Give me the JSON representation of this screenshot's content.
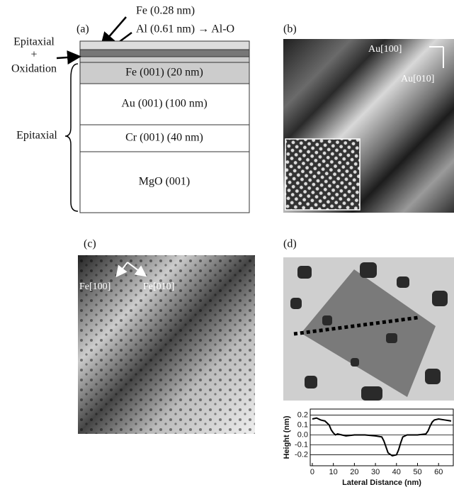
{
  "panel_a": {
    "label": "(a)",
    "top_notes": [
      "Fe (0.28 nm)",
      "Al (0.61 nm) → Al-O"
    ],
    "side_notes": [
      "Epitaxial",
      "+",
      "Oxidation",
      "Epitaxial"
    ],
    "layers": [
      "Fe (001) (20 nm)",
      "Au (001) (100 nm)",
      "Cr (001) (40 nm)",
      "MgO (001)"
    ]
  },
  "panel_b": {
    "label": "(b)",
    "directions": [
      "Au[100]",
      "Au[010]"
    ]
  },
  "panel_c": {
    "label": "(c)",
    "directions": [
      "Fe[100]",
      "Fe[010]"
    ]
  },
  "panel_d": {
    "label": "(d)"
  },
  "chart_data": {
    "type": "line",
    "x_label": "Lateral Distance (nm)",
    "y_label": "Height (nm)",
    "x": [
      0,
      2,
      4,
      6,
      8,
      9,
      10,
      11,
      12,
      14,
      16,
      20,
      25,
      30,
      33,
      34,
      35,
      36,
      38,
      40,
      41,
      42,
      43,
      45,
      50,
      54,
      55,
      56,
      57,
      58,
      60,
      63,
      66
    ],
    "series": [
      {
        "color": "#000000",
        "values": [
          0.16,
          0.17,
          0.15,
          0.14,
          0.1,
          0.05,
          0.02,
          0.0,
          0.01,
          0.0,
          -0.01,
          0.0,
          0.0,
          -0.01,
          -0.02,
          -0.06,
          -0.12,
          -0.18,
          -0.21,
          -0.2,
          -0.15,
          -0.08,
          -0.02,
          0.0,
          0.0,
          0.01,
          0.04,
          0.09,
          0.13,
          0.15,
          0.16,
          0.15,
          0.14
        ]
      }
    ],
    "xlim": [
      -1,
      67
    ],
    "ylim": [
      -0.31,
      0.26
    ],
    "xticks": [
      0,
      10,
      20,
      30,
      40,
      50,
      60
    ],
    "yticks": [
      0.2,
      0.1,
      {
        "value": 0,
        "label": "0.0"
      },
      -0.1,
      -0.2
    ],
    "grid": true
  }
}
